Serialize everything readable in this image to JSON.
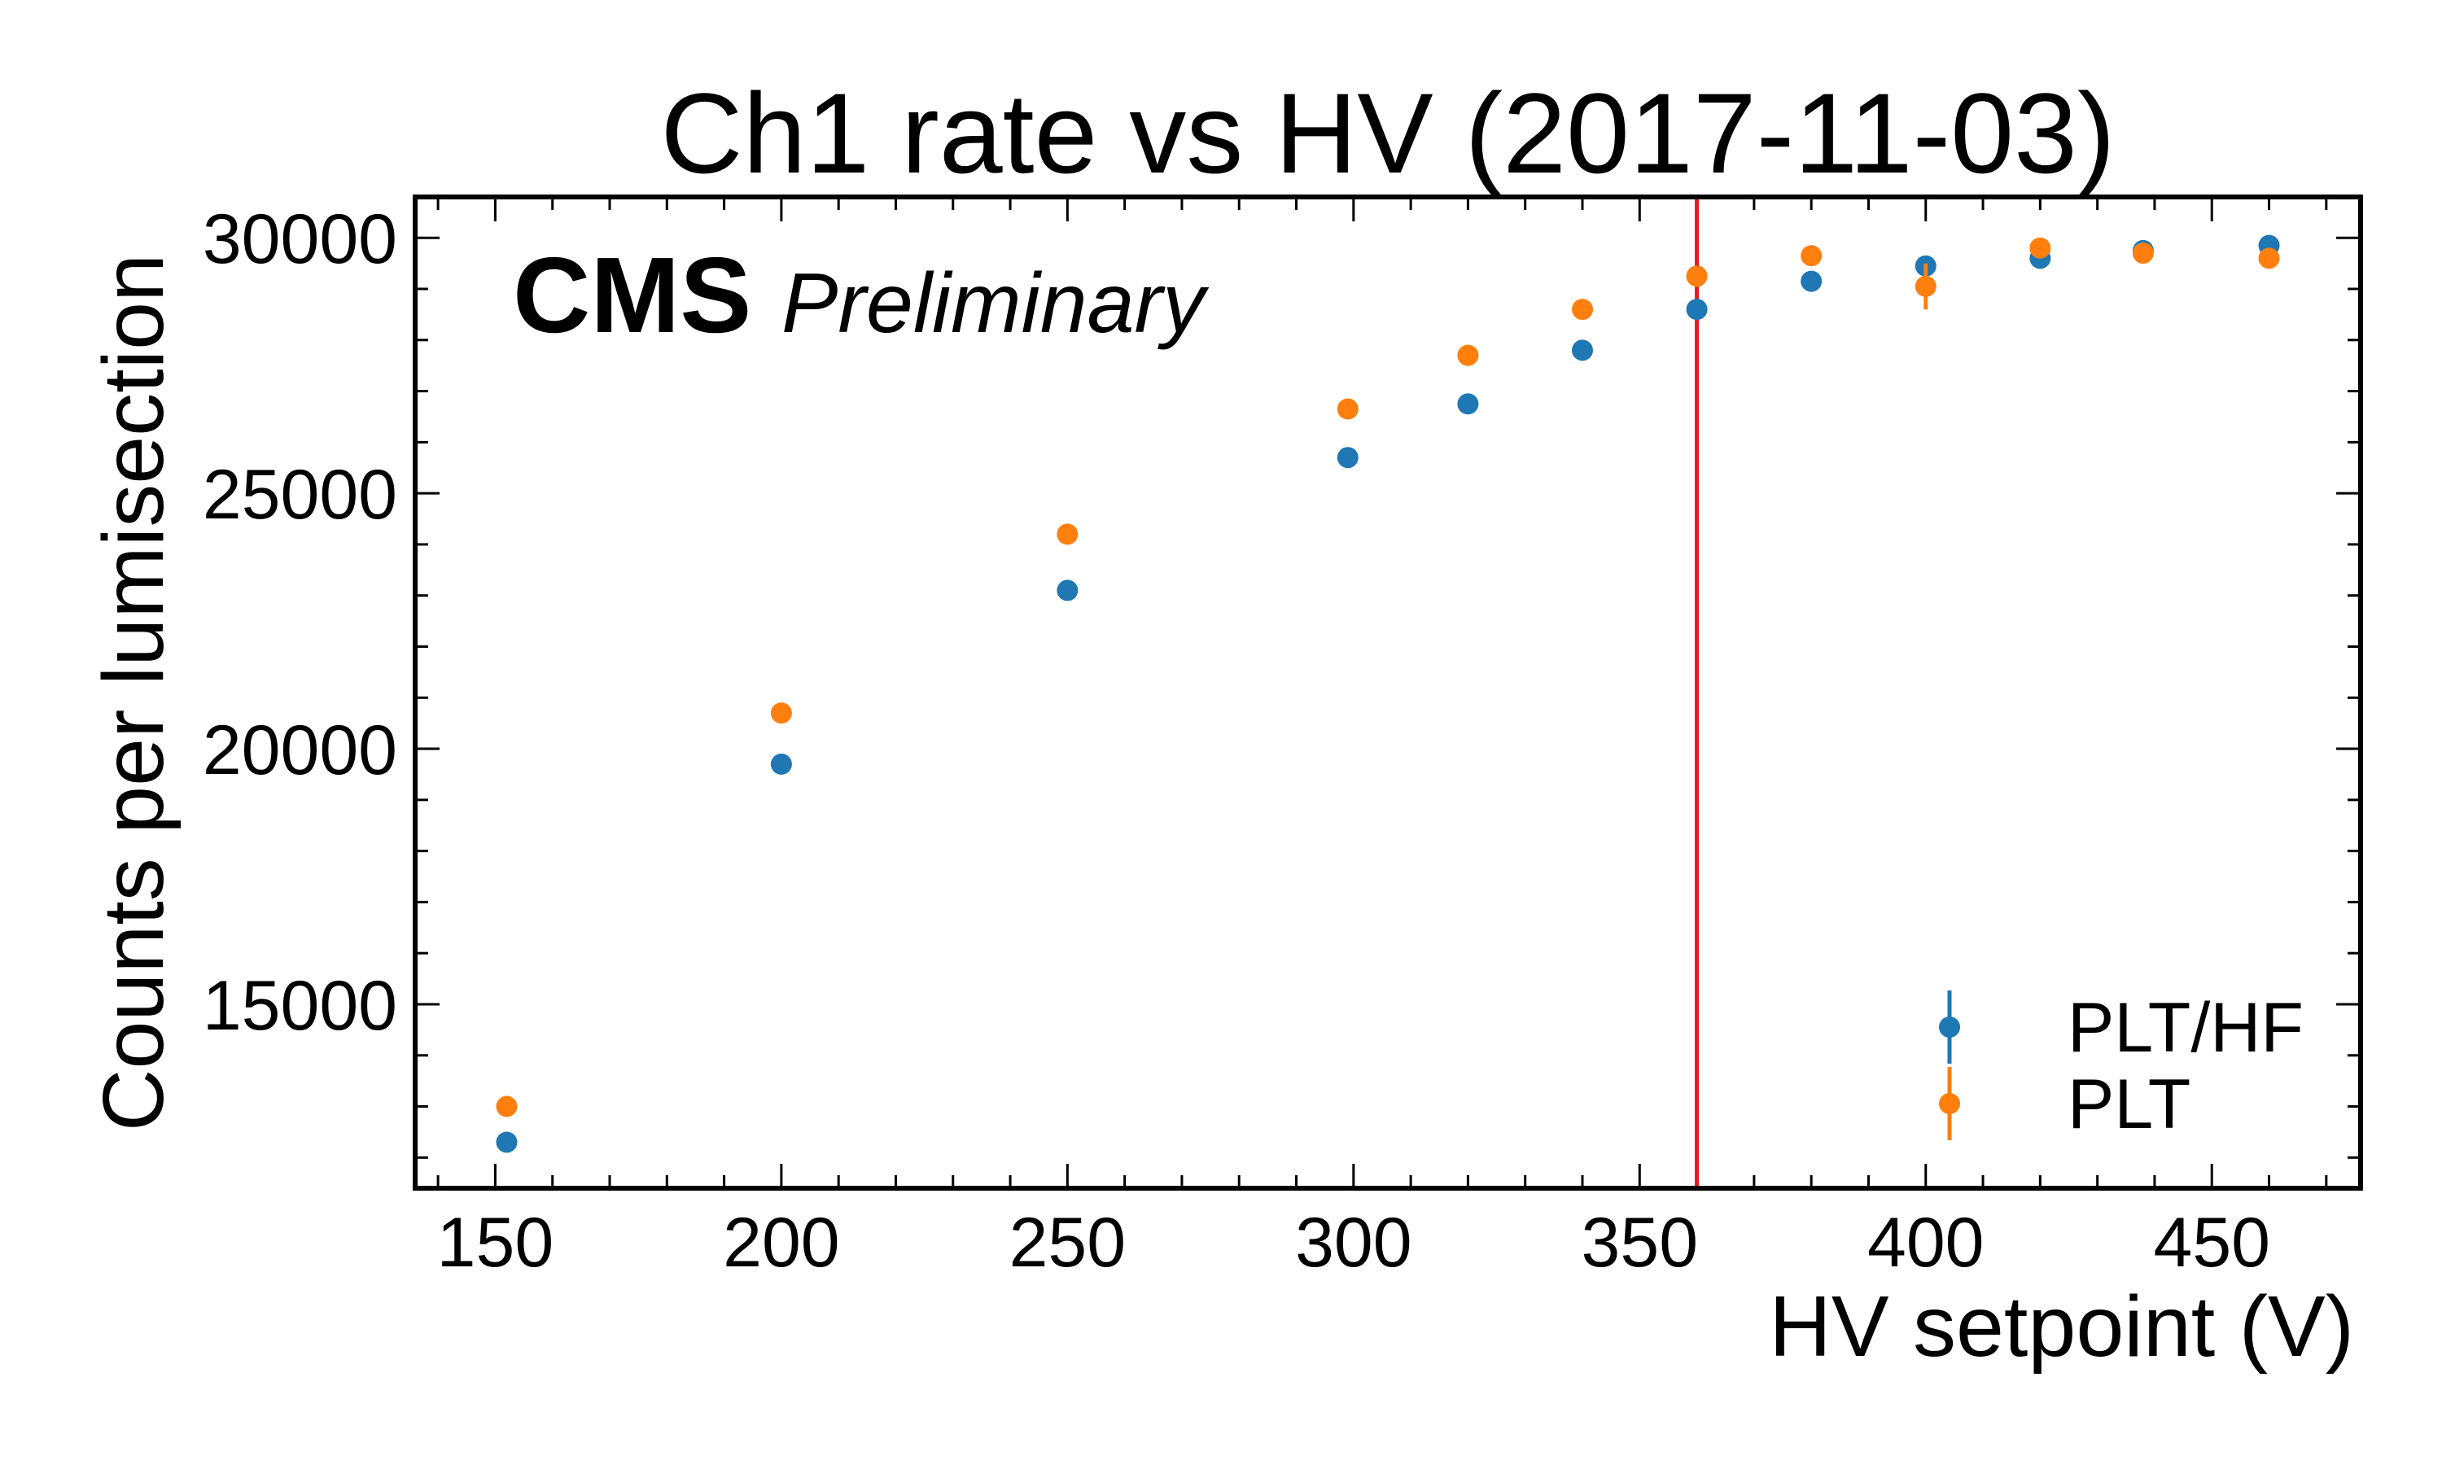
{
  "chart_data": {
    "type": "scatter",
    "title": "Ch1 rate vs HV (2017-11-03)",
    "xlabel": "HV setpoint (V)",
    "ylabel": "Counts per lumisection",
    "xlim": [
      136,
      476
    ],
    "ylim": [
      11400,
      30800
    ],
    "x_ticks": [
      150,
      200,
      250,
      300,
      350,
      400,
      450
    ],
    "y_ticks": [
      15000,
      20000,
      25000,
      30000
    ],
    "grid": false,
    "experiment_label": "CMS",
    "status_label": "Preliminary",
    "legend_position": "bottom-right",
    "reference_line": {
      "x": 360,
      "color": "#e41a1c"
    },
    "series": [
      {
        "name": "PLT/HF",
        "color": "#1f77b4",
        "points": [
          {
            "x": 152,
            "y": 12300,
            "err": 0
          },
          {
            "x": 200,
            "y": 19700,
            "err": 0
          },
          {
            "x": 250,
            "y": 23100,
            "err": 0
          },
          {
            "x": 299,
            "y": 25700,
            "err": 0
          },
          {
            "x": 320,
            "y": 26750,
            "err": 0
          },
          {
            "x": 340,
            "y": 27800,
            "err": 0
          },
          {
            "x": 360,
            "y": 28600,
            "err": 0
          },
          {
            "x": 380,
            "y": 29150,
            "err": 0
          },
          {
            "x": 400,
            "y": 29450,
            "err": 0
          },
          {
            "x": 420,
            "y": 29600,
            "err": 0
          },
          {
            "x": 438,
            "y": 29750,
            "err": 0
          },
          {
            "x": 460,
            "y": 29850,
            "err": 0
          }
        ]
      },
      {
        "name": "PLT",
        "color": "#ff7f0e",
        "points": [
          {
            "x": 152,
            "y": 13000,
            "err": 0
          },
          {
            "x": 200,
            "y": 20700,
            "err": 0
          },
          {
            "x": 250,
            "y": 24200,
            "err": 0
          },
          {
            "x": 299,
            "y": 26650,
            "err": 0
          },
          {
            "x": 320,
            "y": 27700,
            "err": 0
          },
          {
            "x": 340,
            "y": 28600,
            "err": 0
          },
          {
            "x": 360,
            "y": 29250,
            "err": 0
          },
          {
            "x": 380,
            "y": 29650,
            "err": 0
          },
          {
            "x": 400,
            "y": 29050,
            "err": 450
          },
          {
            "x": 420,
            "y": 29800,
            "err": 0
          },
          {
            "x": 438,
            "y": 29700,
            "err": 0
          },
          {
            "x": 460,
            "y": 29600,
            "err": 0
          }
        ]
      }
    ]
  }
}
